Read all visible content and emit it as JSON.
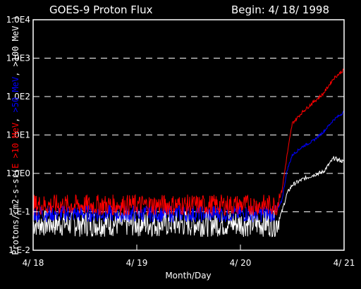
{
  "chart_data": {
    "type": "line",
    "title": "GOES-9 Proton Flux",
    "subtitle": "Begin: 4/ 18/ 1998",
    "xlabel": "Month/Day",
    "ylabel_parts": [
      "Protons/cm2-s-sr(",
      "E >10 MeV",
      ", ",
      ">50 MeV",
      ", ",
      ">100 MeV",
      " )"
    ],
    "ylabel_colors": [
      "#ffffff",
      "#ff0000",
      "#ffffff",
      "#0000ff",
      "#ffffff",
      "#ffffff",
      "#ffffff"
    ],
    "x_ticks": [
      "4/ 18",
      "4/ 19",
      "4/ 20",
      "4/ 21"
    ],
    "xlim": [
      0,
      3
    ],
    "y_ticks": [
      "1.E-2",
      "1.E-1",
      "1.0E0",
      "1.0E1",
      "1.0E2",
      "1.0E3",
      "1.0E4"
    ],
    "y_tick_exponents": [
      -2,
      -1,
      0,
      1,
      2,
      3,
      4
    ],
    "ylim": [
      0.01,
      10000
    ],
    "y_scale": "log",
    "grid": "horizontal dashed lines at each decade",
    "series": [
      {
        "name": "E >10 MeV",
        "color": "#ff0000",
        "x": [
          0,
          0.5,
          1.0,
          1.5,
          2.0,
          2.35,
          2.4,
          2.45,
          2.5,
          2.6,
          2.7,
          2.8,
          2.9,
          3.0
        ],
        "values": [
          0.15,
          0.15,
          0.15,
          0.15,
          0.15,
          0.15,
          0.35,
          3,
          20,
          40,
          70,
          120,
          300,
          500
        ]
      },
      {
        "name": ">50 MeV",
        "color": "#0000ff",
        "x": [
          0,
          0.5,
          1.0,
          1.5,
          2.0,
          2.35,
          2.4,
          2.45,
          2.5,
          2.6,
          2.7,
          2.8,
          2.9,
          3.0
        ],
        "values": [
          0.09,
          0.09,
          0.09,
          0.09,
          0.09,
          0.09,
          0.2,
          1.2,
          3,
          5,
          7,
          12,
          25,
          40
        ]
      },
      {
        "name": ">100 MeV",
        "color": "#ffffff",
        "x": [
          0,
          0.5,
          1.0,
          1.5,
          2.0,
          2.35,
          2.4,
          2.45,
          2.5,
          2.6,
          2.7,
          2.8,
          2.9,
          3.0
        ],
        "values": [
          0.05,
          0.05,
          0.05,
          0.05,
          0.05,
          0.05,
          0.1,
          0.3,
          0.5,
          0.7,
          0.9,
          1.1,
          2.5,
          2.0
        ]
      }
    ]
  }
}
